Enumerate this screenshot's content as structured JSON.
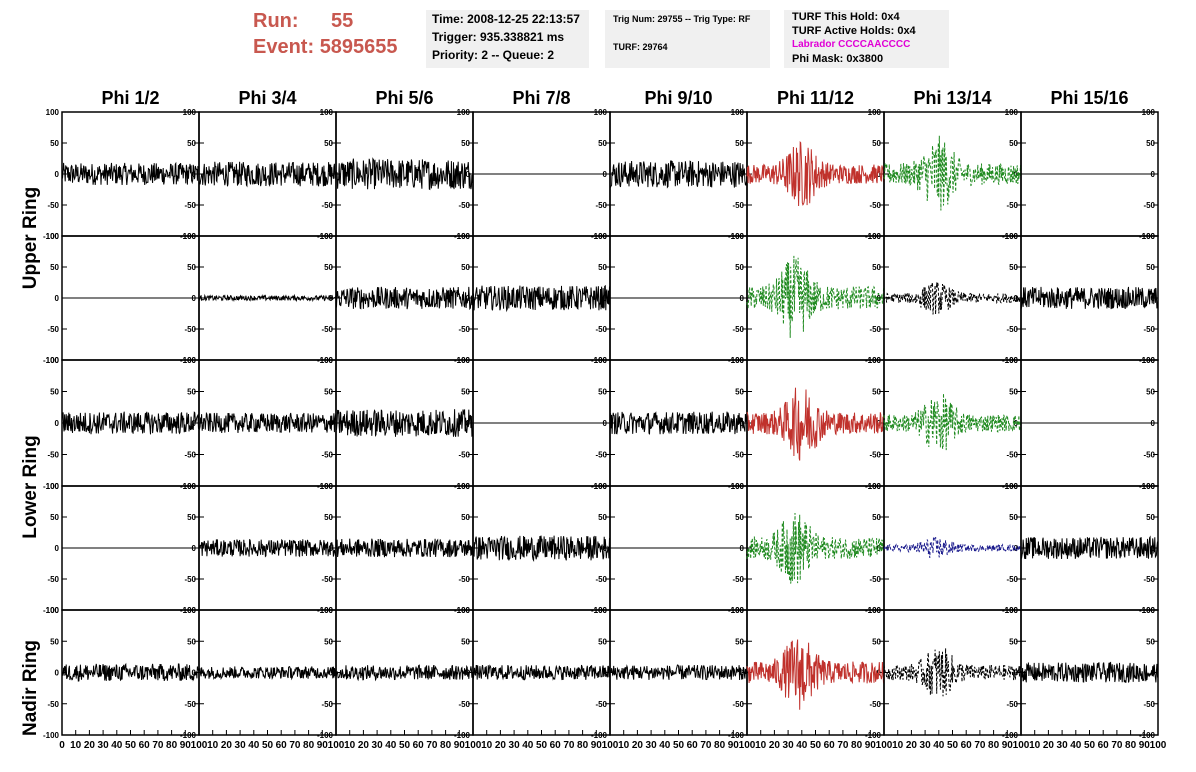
{
  "header": {
    "run_label": "Run:",
    "run_value": "55",
    "event_label": "Event:",
    "event_value": "5895655",
    "time": "Time: 2008-12-25 22:13:57",
    "trigger": "Trigger: 935.338821 ms",
    "priority": "Priority: 2 -- Queue: 2",
    "trig_num": "Trig Num: 29755 -- Trig Type: RF",
    "turf": "TURF: 29764",
    "turf_this_hold": "TURF This Hold: 0x4",
    "turf_active_holds": "TURF Active Holds: 0x4",
    "labrador": "Labrador CCCCAACCCC",
    "phi_mask": "Phi Mask: 0x3800"
  },
  "columns": [
    "Phi 1/2",
    "Phi 3/4",
    "Phi 5/6",
    "Phi 7/8",
    "Phi 9/10",
    "Phi 11/12",
    "Phi 13/14",
    "Phi 15/16"
  ],
  "ring_labels": [
    "Upper Ring",
    "Lower Ring",
    "Nadir Ring"
  ],
  "colors": {
    "red": "#c0312c",
    "green": "#1f8a1f",
    "blue": "#1a1a8c",
    "black": "#000000",
    "accent": "#c8584f",
    "magenta": "#e000d6"
  },
  "chart_data": {
    "type": "line",
    "title": "",
    "xlabel": "",
    "ylabel": "",
    "ylim": [
      -100,
      100
    ],
    "xlim": [
      0,
      100
    ],
    "yticks": [
      100,
      50,
      0,
      -50,
      -100
    ],
    "xtick_labels": [
      "0",
      "10",
      "20",
      "30",
      "40",
      "50",
      "60",
      "70",
      "80",
      "90",
      "100"
    ],
    "rows": [
      [
        {
          "amp": 18,
          "color": "black",
          "style": "solid"
        },
        {
          "amp": 20,
          "color": "black",
          "style": "solid"
        },
        {
          "amp": 25,
          "color": "black",
          "style": "solid"
        },
        {
          "amp": 0,
          "color": "black",
          "style": "solid"
        },
        {
          "amp": 22,
          "color": "black",
          "style": "solid"
        },
        {
          "amp": 45,
          "burst": 40,
          "color": "red",
          "style": "solid"
        },
        {
          "amp": 50,
          "burst": 40,
          "color": "green",
          "style": "dashed"
        },
        {
          "amp": 0,
          "color": "black",
          "style": "solid"
        }
      ],
      [
        {
          "amp": 0,
          "color": "black",
          "style": "solid"
        },
        {
          "amp": 4,
          "color": "black",
          "style": "solid"
        },
        {
          "amp": 18,
          "color": "black",
          "style": "solid"
        },
        {
          "amp": 20,
          "color": "black",
          "style": "solid"
        },
        {
          "amp": 0,
          "color": "black",
          "style": "solid"
        },
        {
          "amp": 55,
          "burst": 35,
          "color": "green",
          "style": "dashed"
        },
        {
          "amp": 22,
          "burst": 38,
          "color": "black",
          "style": "dashed"
        },
        {
          "amp": 18,
          "color": "black",
          "style": "solid"
        }
      ],
      [
        {
          "amp": 18,
          "color": "black",
          "style": "solid"
        },
        {
          "amp": 16,
          "color": "black",
          "style": "solid"
        },
        {
          "amp": 22,
          "color": "black",
          "style": "solid"
        },
        {
          "amp": 0,
          "color": "black",
          "style": "solid"
        },
        {
          "amp": 18,
          "color": "black",
          "style": "solid"
        },
        {
          "amp": 50,
          "burst": 40,
          "color": "red",
          "style": "solid"
        },
        {
          "amp": 40,
          "burst": 40,
          "color": "green",
          "style": "dashed"
        },
        {
          "amp": 0,
          "color": "black",
          "style": "solid"
        }
      ],
      [
        {
          "amp": 0,
          "color": "black",
          "style": "solid"
        },
        {
          "amp": 14,
          "color": "black",
          "style": "solid"
        },
        {
          "amp": 15,
          "color": "black",
          "style": "solid"
        },
        {
          "amp": 20,
          "color": "black",
          "style": "solid"
        },
        {
          "amp": 0,
          "color": "black",
          "style": "solid"
        },
        {
          "amp": 50,
          "burst": 35,
          "color": "green",
          "style": "dashed"
        },
        {
          "amp": 15,
          "burst": 38,
          "color": "blue",
          "style": "dashed"
        },
        {
          "amp": 18,
          "color": "black",
          "style": "solid"
        }
      ],
      [
        {
          "amp": 14,
          "color": "black",
          "style": "solid"
        },
        {
          "amp": 10,
          "color": "black",
          "style": "solid"
        },
        {
          "amp": 12,
          "color": "black",
          "style": "solid"
        },
        {
          "amp": 12,
          "color": "black",
          "style": "solid"
        },
        {
          "amp": 12,
          "color": "black",
          "style": "solid"
        },
        {
          "amp": 50,
          "burst": 38,
          "color": "red",
          "style": "solid"
        },
        {
          "amp": 35,
          "burst": 40,
          "color": "black",
          "style": "dashed"
        },
        {
          "amp": 16,
          "color": "black",
          "style": "solid"
        }
      ]
    ]
  }
}
